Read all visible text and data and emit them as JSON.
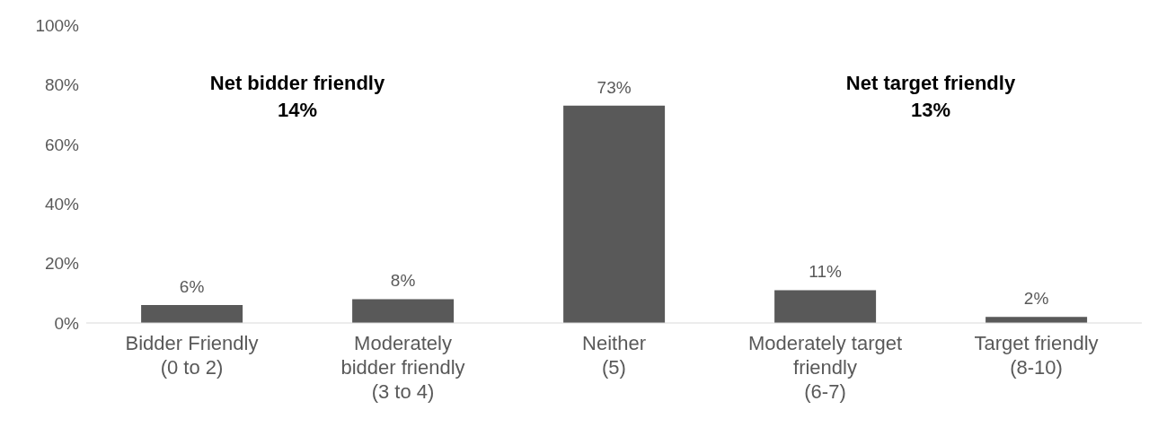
{
  "chart_data": {
    "type": "bar",
    "categories": [
      "Bidder Friendly\n(0 to 2)",
      "Moderately\nbidder friendly\n(3 to 4)",
      "Neither\n(5)",
      "Moderately target\nfriendly\n(6-7)",
      "Target friendly\n(8-10)"
    ],
    "values": [
      6,
      8,
      73,
      11,
      2
    ],
    "value_labels": [
      "6%",
      "8%",
      "73%",
      "11%",
      "2%"
    ],
    "color": "#595959",
    "ylim": [
      0,
      100
    ],
    "yticks": [
      {
        "value": 0,
        "label": "0%"
      },
      {
        "value": 20,
        "label": "20%"
      },
      {
        "value": 40,
        "label": "40%"
      },
      {
        "value": 60,
        "label": "60%"
      },
      {
        "value": 80,
        "label": "80%"
      },
      {
        "value": 100,
        "label": "100%"
      }
    ],
    "grid": false,
    "annotations": [
      "Net bidder friendly\n14%",
      "Net target friendly\n13%"
    ]
  }
}
